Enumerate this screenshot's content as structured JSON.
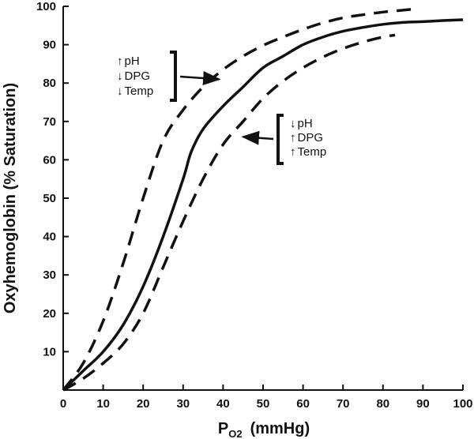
{
  "chart_data": {
    "type": "line",
    "title": "",
    "xlabel": {
      "main": "P",
      "subscript": "O2",
      "unit": "(mmHg)"
    },
    "ylabel": "Oxyhemoglobin (% Saturation)",
    "xlim": [
      0,
      100
    ],
    "ylim": [
      0,
      100
    ],
    "x_ticks": [
      0,
      10,
      20,
      30,
      40,
      50,
      60,
      70,
      80,
      90,
      100
    ],
    "y_ticks": [
      10,
      20,
      30,
      40,
      50,
      60,
      70,
      80,
      90,
      100
    ],
    "grid": false,
    "legend": "none",
    "series": [
      {
        "style": "solid",
        "x": [
          0,
          5,
          10,
          15,
          20,
          25,
          30,
          32,
          35,
          40,
          45,
          50,
          55,
          60,
          65,
          70,
          75,
          80,
          85,
          90,
          95,
          100
        ],
        "y": [
          0,
          5,
          10,
          17,
          27,
          40,
          55,
          62,
          68,
          74,
          79,
          84,
          87,
          90,
          92,
          93.5,
          94.5,
          95.3,
          95.8,
          96,
          96.3,
          96.5
        ]
      },
      {
        "style": "dashed",
        "x": [
          0,
          5,
          10,
          15,
          20,
          25,
          30,
          35,
          40,
          45,
          50,
          55,
          60,
          65,
          70,
          75,
          80,
          85,
          88
        ],
        "y": [
          0,
          7,
          18,
          33,
          50,
          65,
          73,
          79,
          83.5,
          87,
          89.8,
          92,
          94,
          95.7,
          97,
          97.8,
          98.5,
          99,
          99.3
        ]
      },
      {
        "style": "dashed",
        "x": [
          0,
          5,
          10,
          15,
          20,
          25,
          30,
          35,
          40,
          45,
          50,
          55,
          60,
          65,
          70,
          75,
          80,
          83
        ],
        "y": [
          0,
          3,
          7,
          12,
          20,
          32,
          44,
          55,
          64,
          70,
          76,
          80.5,
          84,
          86.8,
          89,
          90.7,
          92,
          92.5
        ]
      }
    ],
    "annotations": [
      {
        "group": "left-shift",
        "lines": [
          {
            "arrow": "↑",
            "text": "pH"
          },
          {
            "arrow": "↓",
            "text": "DPG"
          },
          {
            "arrow": "↓",
            "text": "Temp"
          }
        ],
        "arrow_target": {
          "x": 39,
          "y": 81
        }
      },
      {
        "group": "right-shift",
        "lines": [
          {
            "arrow": "↓",
            "text": "pH"
          },
          {
            "arrow": "↑",
            "text": "DPG"
          },
          {
            "arrow": "↑",
            "text": "Temp"
          }
        ],
        "arrow_target": {
          "x": 45,
          "y": 66
        }
      }
    ]
  }
}
